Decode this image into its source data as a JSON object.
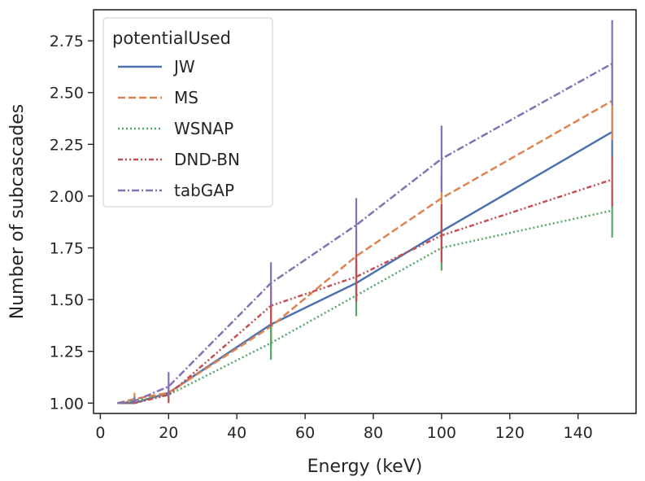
{
  "chart_data": {
    "type": "line",
    "title": "",
    "xlabel": "Energy (keV)",
    "ylabel": "Number of subcascades",
    "xlim": [
      -2,
      157
    ],
    "ylim": [
      0.95,
      2.9
    ],
    "xticks": [
      0,
      20,
      40,
      60,
      80,
      100,
      120,
      140
    ],
    "yticks": [
      1.0,
      1.25,
      1.5,
      1.75,
      2.0,
      2.25,
      2.5,
      2.75
    ],
    "xtick_labels": [
      "0",
      "20",
      "40",
      "60",
      "80",
      "100",
      "120",
      "140"
    ],
    "ytick_labels": [
      "1.00",
      "1.25",
      "1.50",
      "1.75",
      "2.00",
      "2.25",
      "2.50",
      "2.75"
    ],
    "grid": false,
    "legend": {
      "title": "potentialUsed",
      "placement": "top-left"
    },
    "series": [
      {
        "name": "JW",
        "color": "#4c72b0",
        "dash": "solid",
        "x": [
          5,
          10,
          20,
          50,
          75,
          100,
          150
        ],
        "y": [
          1.0,
          1.0,
          1.05,
          1.38,
          1.58,
          1.83,
          2.31
        ],
        "err_low": [
          1.0,
          1.0,
          1.03,
          1.3,
          1.49,
          1.71,
          2.17
        ],
        "err_high": [
          1.0,
          1.01,
          1.07,
          1.47,
          1.67,
          1.96,
          2.46
        ]
      },
      {
        "name": "MS",
        "color": "#dd8452",
        "dash": "dashed",
        "x": [
          5,
          10,
          20,
          50,
          75,
          100,
          150
        ],
        "y": [
          1.0,
          1.02,
          1.05,
          1.37,
          1.71,
          1.99,
          2.46
        ],
        "err_low": [
          1.0,
          1.0,
          1.02,
          1.28,
          1.6,
          1.87,
          2.27
        ],
        "err_high": [
          1.0,
          1.05,
          1.08,
          1.47,
          1.83,
          2.11,
          2.64
        ]
      },
      {
        "name": "WSNAP",
        "color": "#55a868",
        "dash": "dotted",
        "x": [
          5,
          10,
          20,
          50,
          75,
          100,
          150
        ],
        "y": [
          1.0,
          1.01,
          1.04,
          1.29,
          1.52,
          1.75,
          1.93
        ],
        "err_low": [
          1.0,
          1.0,
          1.01,
          1.21,
          1.42,
          1.64,
          1.8
        ],
        "err_high": [
          1.0,
          1.03,
          1.07,
          1.38,
          1.62,
          1.86,
          2.04
        ]
      },
      {
        "name": "DND-BN",
        "color": "#c44e52",
        "dash": "dashdotdot",
        "x": [
          5,
          10,
          20,
          50,
          75,
          100,
          150
        ],
        "y": [
          1.0,
          1.0,
          1.04,
          1.47,
          1.61,
          1.81,
          2.08
        ],
        "err_low": [
          1.0,
          1.0,
          1.0,
          1.37,
          1.49,
          1.68,
          1.95
        ],
        "err_high": [
          1.0,
          1.0,
          1.08,
          1.57,
          1.72,
          1.96,
          2.19
        ]
      },
      {
        "name": "tabGAP",
        "color": "#8172b3",
        "dash": "dashdot",
        "x": [
          5,
          10,
          20,
          50,
          75,
          100,
          150
        ],
        "y": [
          1.0,
          1.01,
          1.08,
          1.58,
          1.86,
          2.18,
          2.64
        ],
        "err_low": [
          1.0,
          1.0,
          1.03,
          1.47,
          1.72,
          2.02,
          2.44
        ],
        "err_high": [
          1.0,
          1.03,
          1.15,
          1.68,
          1.99,
          2.34,
          2.85
        ]
      }
    ]
  }
}
